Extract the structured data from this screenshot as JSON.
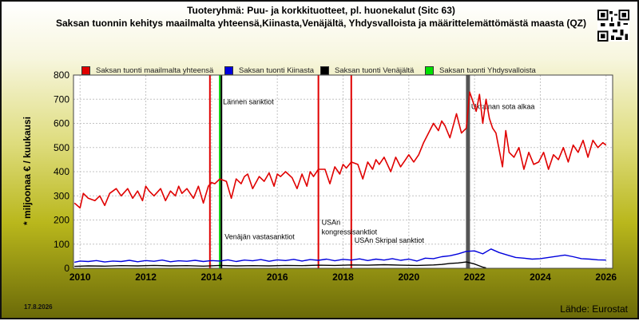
{
  "title_line1": "Tuoteryhmä: Puu- ja korkkituotteet, pl. huonekalut (Sitc 63)",
  "title_line2": "Saksan tuonnin kehitys maailmalta yhteensä,Kiinasta,Venäjältä, Yhdysvalloista ja määrittelemättömästä maasta (QZ)",
  "qr_icon": "qr-code-icon",
  "date_stamp": "17.8.2026",
  "source": "Lähde: Eurostat",
  "chart_data": {
    "type": "line",
    "ylabel": "* miljoonaa € / kuukausi",
    "ylim": [
      0,
      800
    ],
    "xlim": [
      2009.8,
      2026.2
    ],
    "yticks": [
      "0",
      "100",
      "200",
      "300",
      "400",
      "500",
      "600",
      "700",
      "800"
    ],
    "xticks": [
      "2010",
      "2012",
      "2014",
      "2016",
      "2018",
      "2020",
      "2022",
      "2024",
      "2026"
    ],
    "grid": true,
    "series": [
      {
        "name": "Saksan tuonti maailmalta yhteensä",
        "color": "#e00000",
        "x": [
          2009.83,
          2010.0,
          2010.1,
          2010.25,
          2010.45,
          2010.6,
          2010.75,
          2010.9,
          2011.0,
          2011.1,
          2011.25,
          2011.45,
          2011.6,
          2011.75,
          2011.9,
          2012.0,
          2012.1,
          2012.25,
          2012.45,
          2012.6,
          2012.75,
          2012.9,
          2013.0,
          2013.1,
          2013.25,
          2013.45,
          2013.6,
          2013.75,
          2013.9,
          2014.0,
          2014.1,
          2014.25,
          2014.45,
          2014.6,
          2014.75,
          2014.9,
          2015.0,
          2015.1,
          2015.25,
          2015.45,
          2015.6,
          2015.75,
          2015.9,
          2016.0,
          2016.1,
          2016.25,
          2016.45,
          2016.6,
          2016.75,
          2016.9,
          2017.0,
          2017.1,
          2017.25,
          2017.45,
          2017.6,
          2017.75,
          2017.9,
          2018.0,
          2018.1,
          2018.25,
          2018.45,
          2018.6,
          2018.75,
          2018.9,
          2019.0,
          2019.1,
          2019.25,
          2019.45,
          2019.6,
          2019.75,
          2019.9,
          2020.0,
          2020.15,
          2020.3,
          2020.45,
          2020.6,
          2020.75,
          2020.9,
          2021.0,
          2021.1,
          2021.25,
          2021.45,
          2021.6,
          2021.75,
          2021.85,
          2021.95,
          2022.05,
          2022.15,
          2022.25,
          2022.35,
          2022.45,
          2022.55,
          2022.65,
          2022.75,
          2022.85,
          2022.95,
          2023.05,
          2023.2,
          2023.35,
          2023.5,
          2023.65,
          2023.8,
          2023.95,
          2024.1,
          2024.25,
          2024.4,
          2024.55,
          2024.7,
          2024.85,
          2025.0,
          2025.15,
          2025.3,
          2025.45,
          2025.6,
          2025.75,
          2025.9,
          2026.0
        ],
        "values": [
          270,
          250,
          310,
          290,
          280,
          300,
          260,
          310,
          320,
          330,
          300,
          330,
          290,
          320,
          280,
          340,
          320,
          300,
          330,
          280,
          320,
          300,
          340,
          310,
          330,
          290,
          340,
          270,
          340,
          355,
          350,
          370,
          360,
          290,
          370,
          350,
          380,
          390,
          330,
          380,
          360,
          395,
          340,
          390,
          380,
          400,
          375,
          330,
          390,
          340,
          400,
          380,
          410,
          410,
          350,
          420,
          390,
          430,
          415,
          440,
          430,
          370,
          440,
          410,
          450,
          430,
          460,
          400,
          460,
          420,
          450,
          470,
          440,
          470,
          520,
          560,
          600,
          570,
          610,
          590,
          540,
          640,
          560,
          580,
          730,
          690,
          650,
          720,
          600,
          700,
          620,
          580,
          560,
          490,
          420,
          570,
          480,
          460,
          500,
          410,
          480,
          430,
          440,
          480,
          410,
          470,
          450,
          500,
          440,
          510,
          480,
          530,
          460,
          530,
          500,
          520,
          510
        ]
      },
      {
        "name": "Saksan tuonti Kiinasta",
        "color": "#0000dd",
        "x": [
          2009.83,
          2010.0,
          2010.25,
          2010.5,
          2010.75,
          2011.0,
          2011.25,
          2011.5,
          2011.75,
          2012.0,
          2012.25,
          2012.5,
          2012.75,
          2013.0,
          2013.25,
          2013.5,
          2013.75,
          2014.0,
          2014.25,
          2014.5,
          2014.75,
          2015.0,
          2015.25,
          2015.5,
          2015.75,
          2016.0,
          2016.25,
          2016.5,
          2016.75,
          2017.0,
          2017.25,
          2017.5,
          2017.75,
          2018.0,
          2018.25,
          2018.5,
          2018.75,
          2019.0,
          2019.25,
          2019.5,
          2019.75,
          2020.0,
          2020.25,
          2020.5,
          2020.75,
          2021.0,
          2021.25,
          2021.5,
          2021.75,
          2022.0,
          2022.25,
          2022.5,
          2022.75,
          2023.0,
          2023.25,
          2023.5,
          2023.75,
          2024.0,
          2024.25,
          2024.5,
          2024.75,
          2025.0,
          2025.25,
          2025.5,
          2025.75,
          2026.0
        ],
        "values": [
          25,
          30,
          28,
          32,
          26,
          30,
          28,
          33,
          27,
          32,
          29,
          34,
          27,
          31,
          29,
          33,
          28,
          32,
          30,
          35,
          28,
          34,
          31,
          36,
          29,
          35,
          32,
          37,
          30,
          36,
          33,
          38,
          31,
          37,
          34,
          39,
          32,
          38,
          34,
          40,
          33,
          38,
          30,
          42,
          40,
          48,
          52,
          60,
          70,
          72,
          60,
          80,
          65,
          55,
          45,
          42,
          38,
          40,
          45,
          50,
          55,
          48,
          40,
          38,
          35,
          34
        ]
      },
      {
        "name": "Saksan tuonti Venäjältä",
        "color": "#000000",
        "x": [
          2009.83,
          2010.25,
          2010.75,
          2011.25,
          2011.75,
          2012.25,
          2012.75,
          2013.25,
          2013.75,
          2014.25,
          2014.75,
          2015.25,
          2015.75,
          2016.25,
          2016.75,
          2017.25,
          2017.75,
          2018.25,
          2018.75,
          2019.25,
          2019.75,
          2020.25,
          2020.75,
          2021.0,
          2021.25,
          2021.5,
          2021.75,
          2022.0,
          2022.15,
          2022.25,
          2022.35
        ],
        "values": [
          8,
          10,
          9,
          11,
          10,
          12,
          10,
          11,
          9,
          12,
          10,
          11,
          10,
          12,
          11,
          13,
          12,
          14,
          13,
          15,
          13,
          12,
          14,
          16,
          20,
          22,
          26,
          18,
          10,
          5,
          2
        ]
      }
    ],
    "legend": [
      "Saksan tuonti maailmalta yhteensä",
      "Saksan tuonti Kiinasta",
      "Saksan tuonti Venäjältä",
      "Saksan tuonti Yhdysvalloista"
    ],
    "legend_colors": [
      "#e00000",
      "#0000dd",
      "#000000",
      "#00e000"
    ],
    "legend_placement": "top",
    "events": [
      {
        "x": 2013.95,
        "color": "#e00000",
        "label": "",
        "label_y": 0
      },
      {
        "x": 2014.25,
        "color": "#00cc00",
        "label": "Lännen sanktiot",
        "label_y": 680
      },
      {
        "x": 2014.3,
        "color": "#000000",
        "label": "Venäjän vastasanktiot",
        "label_y": 120
      },
      {
        "x": 2017.25,
        "color": "#e00000",
        "label": "USAn",
        "label_y": 180
      },
      {
        "x": 2017.25,
        "color": "#e00000",
        "label": "kongressisanktiot",
        "label_y": 140
      },
      {
        "x": 2018.25,
        "color": "#e00000",
        "label": "USAn Skripal sanktiot",
        "label_y": 105
      },
      {
        "x": 2021.8,
        "color": "#555555",
        "label": "Ukrainan sota alkaa",
        "label_y": 660
      }
    ]
  }
}
